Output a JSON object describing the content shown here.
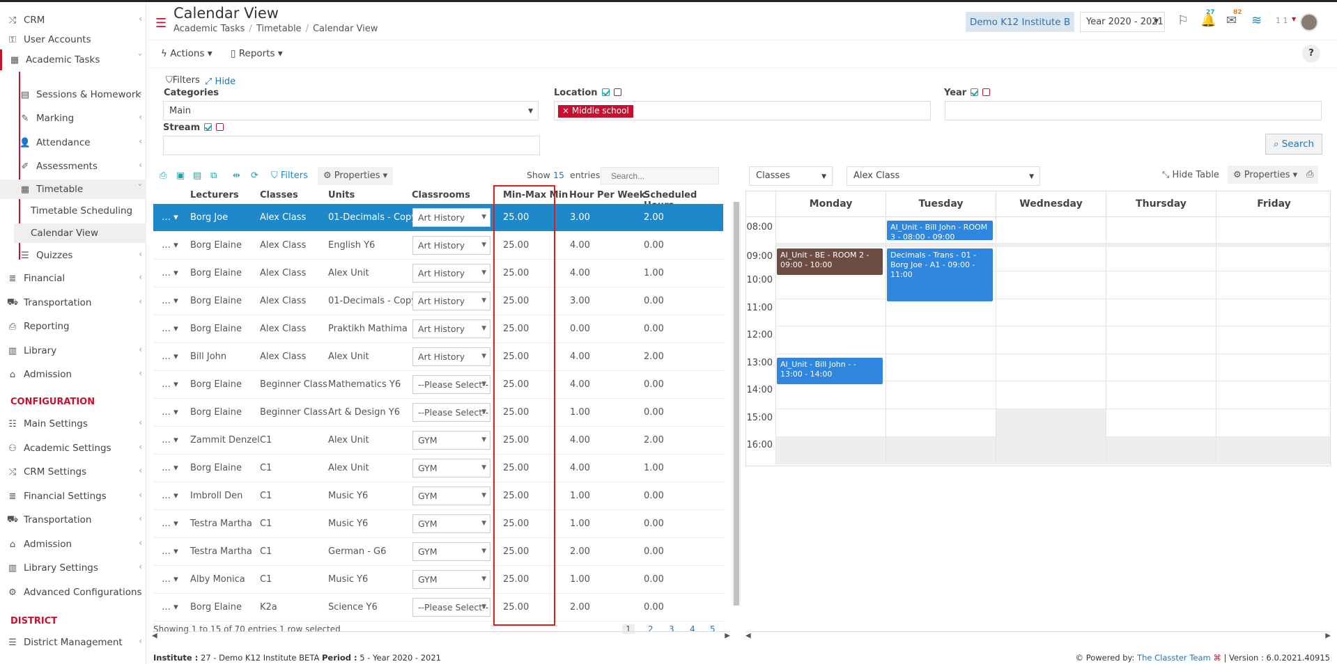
{
  "sidebar": {
    "items": [
      {
        "label": "CRM",
        "icon": "shuffle-icon"
      },
      {
        "label": "User Accounts",
        "icon": "key-icon"
      },
      {
        "label": "Academic Tasks",
        "icon": "grid-icon"
      },
      {
        "label": "Sessions & Homework",
        "icon": "chalkboard-icon"
      },
      {
        "label": "Marking",
        "icon": "edit-icon"
      },
      {
        "label": "Attendance",
        "icon": "user-x-icon"
      },
      {
        "label": "Assessments",
        "icon": "pencil-square-icon"
      },
      {
        "label": "Timetable",
        "icon": "calendar-icon"
      },
      {
        "label": "Timetable Scheduling"
      },
      {
        "label": "Calendar View"
      },
      {
        "label": "Quizzes",
        "icon": "list-icon"
      },
      {
        "label": "Financial",
        "icon": "database-icon"
      },
      {
        "label": "Transportation",
        "icon": "bus-icon"
      },
      {
        "label": "Reporting",
        "icon": "print-icon"
      },
      {
        "label": "Library",
        "icon": "books-icon"
      },
      {
        "label": "Admission",
        "icon": "bank-icon"
      }
    ],
    "config_title": "CONFIGURATION",
    "config_items": [
      {
        "label": "Main Settings"
      },
      {
        "label": "Academic Settings"
      },
      {
        "label": "CRM Settings"
      },
      {
        "label": "Financial Settings"
      },
      {
        "label": "Transportation"
      },
      {
        "label": "Admission"
      },
      {
        "label": "Library Settings"
      },
      {
        "label": "Advanced Configurations"
      }
    ],
    "district_title": "DISTRICT",
    "district_items": [
      {
        "label": "District Management"
      }
    ]
  },
  "header": {
    "title": "Calendar View",
    "breadcrumb": [
      "Academic Tasks",
      "Timetable",
      "Calendar View"
    ],
    "institute": "Demo K12 Institute B",
    "year": "Year 2020 - 2021",
    "notif_count": "27",
    "mail_count": "82",
    "user_label": "1 1"
  },
  "toolbar": {
    "actions": "Actions",
    "reports": "Reports",
    "help": "?"
  },
  "filters": {
    "title": "Filters",
    "hide": "Hide",
    "categories_label": "Categories",
    "categories_value": "Main",
    "location_label": "Location",
    "location_tag": "Middle school",
    "year_label": "Year",
    "stream_label": "Stream",
    "search": "Search"
  },
  "grid": {
    "filters_btn": "Filters",
    "properties_btn": "Properties",
    "show": "Show",
    "entries_count": "15",
    "entries": "entries",
    "search_placeholder": "Search...",
    "columns": [
      "Lecturers",
      "Classes",
      "Units",
      "Classrooms",
      "Min-Max Min",
      "Hour Per Week",
      "Scheduled Hours"
    ],
    "rows": [
      {
        "lecturer": "Borg Joe",
        "class": "Alex Class",
        "unit": "01-Decimals - Copy",
        "room": "Art History",
        "minmax": "25.00",
        "hpw": "3.00",
        "sched": "2.00"
      },
      {
        "lecturer": "Borg Elaine",
        "class": "Alex Class",
        "unit": "English Y6",
        "room": "Art History",
        "minmax": "25.00",
        "hpw": "4.00",
        "sched": "0.00"
      },
      {
        "lecturer": "Borg Elaine",
        "class": "Alex Class",
        "unit": "Alex Unit",
        "room": "Art History",
        "minmax": "25.00",
        "hpw": "4.00",
        "sched": "1.00"
      },
      {
        "lecturer": "Borg Elaine",
        "class": "Alex Class",
        "unit": "01-Decimals - Copy",
        "room": "Art History",
        "minmax": "25.00",
        "hpw": "3.00",
        "sched": "0.00"
      },
      {
        "lecturer": "Borg Elaine",
        "class": "Alex Class",
        "unit": "Praktikh Mathima",
        "room": "Art History",
        "minmax": "25.00",
        "hpw": "0.00",
        "sched": "0.00"
      },
      {
        "lecturer": "Bill John",
        "class": "Alex Class",
        "unit": "Alex Unit",
        "room": "Art History",
        "minmax": "25.00",
        "hpw": "4.00",
        "sched": "2.00"
      },
      {
        "lecturer": "Borg Elaine",
        "class": "Beginner Class",
        "unit": "Mathematics Y6",
        "room": "--Please Select--",
        "minmax": "25.00",
        "hpw": "4.00",
        "sched": "0.00"
      },
      {
        "lecturer": "Borg Elaine",
        "class": "Beginner Class",
        "unit": "Art & Design Y6",
        "room": "--Please Select--",
        "minmax": "25.00",
        "hpw": "1.00",
        "sched": "0.00"
      },
      {
        "lecturer": "Zammit Denzel",
        "class": "C1",
        "unit": "Alex Unit",
        "room": "GYM",
        "minmax": "25.00",
        "hpw": "4.00",
        "sched": "2.00"
      },
      {
        "lecturer": "Borg Elaine",
        "class": "C1",
        "unit": "Alex Unit",
        "room": "GYM",
        "minmax": "25.00",
        "hpw": "4.00",
        "sched": "1.00"
      },
      {
        "lecturer": "Imbroll Den",
        "class": "C1",
        "unit": "Music Y6",
        "room": "GYM",
        "minmax": "25.00",
        "hpw": "1.00",
        "sched": "0.00"
      },
      {
        "lecturer": "Testra Martha",
        "class": "C1",
        "unit": "Music Y6",
        "room": "GYM",
        "minmax": "25.00",
        "hpw": "1.00",
        "sched": "0.00"
      },
      {
        "lecturer": "Testra Martha",
        "class": "C1",
        "unit": "German - G6",
        "room": "GYM",
        "minmax": "25.00",
        "hpw": "2.00",
        "sched": "0.00"
      },
      {
        "lecturer": "Alby Monica",
        "class": "C1",
        "unit": "Music Y6",
        "room": "GYM",
        "minmax": "25.00",
        "hpw": "1.00",
        "sched": "0.00"
      },
      {
        "lecturer": "Borg Elaine",
        "class": "K2a",
        "unit": "Science Y6",
        "room": "--Please Select--",
        "minmax": "25.00",
        "hpw": "2.00",
        "sched": "0.00"
      }
    ],
    "footer": "Showing 1 to 15 of 70 entries    1 row selected",
    "pages": [
      "1",
      "2",
      "3",
      "4",
      "5"
    ]
  },
  "calendar": {
    "view_select": "Classes",
    "class_select": "Alex Class",
    "hide_table": "Hide Table",
    "properties": "Properties",
    "days": [
      "Monday",
      "Tuesday",
      "Wednesday",
      "Thursday",
      "Friday"
    ],
    "times": [
      "08:00",
      "09:00",
      "10:00",
      "11:00",
      "12:00",
      "13:00",
      "14:00",
      "15:00",
      "16:00"
    ],
    "events": [
      {
        "text": "AI_Unit - Bill John - ROOM 3 - 08:00 - 09:00",
        "color": "#2e86de"
      },
      {
        "text": "AI_Unit - BE - ROOM 2 - 09:00 - 10:00",
        "color": "#6d4c41"
      },
      {
        "text": "Decimals - Trans - 01 - Borg Joe - A1 - 09:00 - 11:00",
        "color": "#2e86de"
      },
      {
        "text": "AI_Unit - Bill John - - 13:00 - 14:00",
        "color": "#2e86de"
      }
    ]
  },
  "footer": {
    "institute_label": "Institute :",
    "institute_value": "27 - Demo K12 Institute BETA",
    "period_label": "Period :",
    "period_value": "5 - Year 2020 - 2021",
    "powered": "Powered by:",
    "team": "The Classter Team",
    "version": "| Version : 6.0.2021.40915"
  }
}
